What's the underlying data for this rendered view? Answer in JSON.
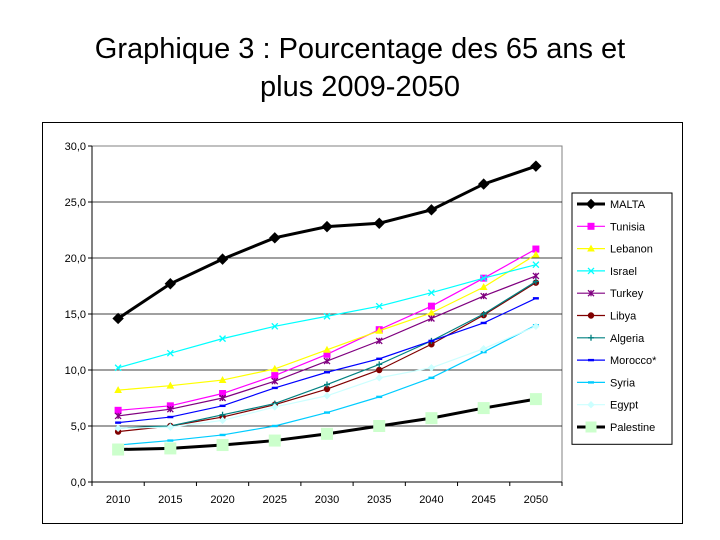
{
  "title_line1": "Graphique 3 : Pourcentage des 65 ans et",
  "title_line2": "plus 2009-2050",
  "chart_data": {
    "type": "line",
    "title": "Graphique 3 : Pourcentage des 65 ans et plus 2009-2050",
    "xlabel": "",
    "ylabel": "",
    "categories": [
      "2010",
      "2015",
      "2020",
      "2025",
      "2030",
      "2035",
      "2040",
      "2045",
      "2050"
    ],
    "y_ticks": [
      "0,0",
      "5,0",
      "10,0",
      "15,0",
      "20,0",
      "25,0",
      "30,0"
    ],
    "ylim": [
      0,
      30
    ],
    "grid": "horizontal",
    "legend_position": "right",
    "series": [
      {
        "name": "MALTA",
        "color": "#000000",
        "marker": "diamond",
        "values": [
          14.6,
          17.7,
          19.9,
          21.8,
          22.8,
          23.1,
          24.3,
          26.6,
          28.2
        ]
      },
      {
        "name": "Tunisia",
        "color": "#ff00ff",
        "marker": "square",
        "values": [
          6.4,
          6.8,
          7.9,
          9.5,
          11.4,
          13.6,
          15.7,
          18.2,
          20.8
        ]
      },
      {
        "name": "Lebanon",
        "color": "#ffff00",
        "marker": "triangle",
        "values": [
          8.2,
          8.6,
          9.1,
          10.1,
          11.8,
          13.5,
          15.1,
          17.4,
          20.3
        ]
      },
      {
        "name": "Israel",
        "color": "#00ffff",
        "marker": "x",
        "values": [
          10.2,
          11.5,
          12.8,
          13.9,
          14.8,
          15.7,
          16.9,
          18.2,
          19.4
        ]
      },
      {
        "name": "Turkey",
        "color": "#800080",
        "marker": "star",
        "values": [
          5.9,
          6.5,
          7.5,
          9.0,
          10.8,
          12.6,
          14.6,
          16.6,
          18.4
        ]
      },
      {
        "name": "Libya",
        "color": "#800000",
        "marker": "circle",
        "values": [
          4.5,
          5.0,
          5.8,
          6.9,
          8.3,
          10.0,
          12.3,
          14.9,
          17.8
        ]
      },
      {
        "name": "Algeria",
        "color": "#008080",
        "marker": "plus",
        "values": [
          4.8,
          5.0,
          6.0,
          7.0,
          8.7,
          10.5,
          12.6,
          15.0,
          17.9
        ]
      },
      {
        "name": "Morocco*",
        "color": "#0000ff",
        "marker": "dash",
        "values": [
          5.3,
          5.8,
          6.8,
          8.4,
          9.8,
          11.0,
          12.6,
          14.2,
          16.4
        ]
      },
      {
        "name": "Syria",
        "color": "#00ccff",
        "marker": "dash",
        "values": [
          3.3,
          3.7,
          4.2,
          5.0,
          6.2,
          7.6,
          9.3,
          11.6,
          14.0
        ]
      },
      {
        "name": "Egypt",
        "color": "#ccffff",
        "marker": "diamond",
        "values": [
          4.8,
          4.9,
          5.5,
          6.7,
          7.7,
          9.3,
          10.2,
          11.9,
          13.9
        ]
      },
      {
        "name": "Palestine",
        "color": "#000000",
        "marker": "square",
        "marker_color": "#ccffcc",
        "values": [
          2.9,
          3.0,
          3.3,
          3.7,
          4.3,
          5.0,
          5.7,
          6.6,
          7.4
        ]
      }
    ]
  }
}
